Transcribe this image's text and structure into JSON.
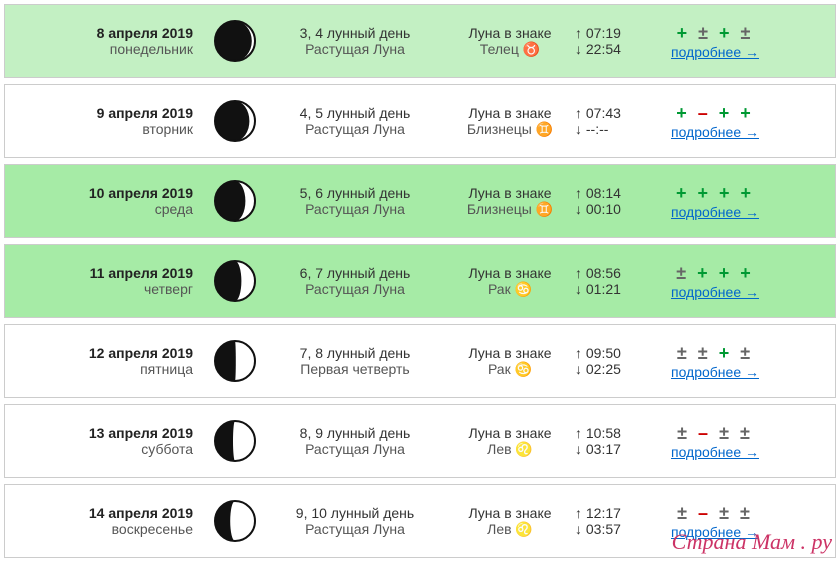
{
  "link_label": "подробнее →",
  "watermark": "Страна Мам . ру",
  "rows": [
    {
      "bg": "bg-palegreen",
      "date": "8 апреля 2019",
      "weekday": "понедельник",
      "moon_light": 0.08,
      "lunar_day": "3, 4 лунный день",
      "phase": "Растущая Луна",
      "sign": "Луна в знаке",
      "zodiac": "Телец ♉",
      "rise": "↑ 07:19",
      "set": "↓ 22:54",
      "score": [
        "+",
        "±",
        "+",
        "±"
      ]
    },
    {
      "bg": "bg-white",
      "date": "9 апреля 2019",
      "weekday": "вторник",
      "moon_light": 0.14,
      "lunar_day": "4, 5 лунный день",
      "phase": "Растущая Луна",
      "sign": "Луна в знаке",
      "zodiac": "Близнецы ♊",
      "rise": "↑ 07:43",
      "set": "↓ --:--",
      "score": [
        "+",
        "–",
        "+",
        "+"
      ]
    },
    {
      "bg": "bg-lightgreen",
      "date": "10 апреля 2019",
      "weekday": "среда",
      "moon_light": 0.24,
      "lunar_day": "5, 6 лунный день",
      "phase": "Растущая Луна",
      "sign": "Луна в знаке",
      "zodiac": "Близнецы ♊",
      "rise": "↑ 08:14",
      "set": "↓ 00:10",
      "score": [
        "+",
        "+",
        "+",
        "+"
      ]
    },
    {
      "bg": "bg-lightgreen",
      "date": "11 апреля 2019",
      "weekday": "четверг",
      "moon_light": 0.34,
      "lunar_day": "6, 7 лунный день",
      "phase": "Растущая Луна",
      "sign": "Луна в знаке",
      "zodiac": "Рак ♋",
      "rise": "↑ 08:56",
      "set": "↓ 01:21",
      "score": [
        "±",
        "+",
        "+",
        "+"
      ]
    },
    {
      "bg": "bg-white",
      "date": "12 апреля 2019",
      "weekday": "пятница",
      "moon_light": 0.48,
      "lunar_day": "7, 8 лунный день",
      "phase": "Первая четверть",
      "sign": "Луна в знаке",
      "zodiac": "Рак ♋",
      "rise": "↑ 09:50",
      "set": "↓ 02:25",
      "score": [
        "±",
        "±",
        "+",
        "±"
      ]
    },
    {
      "bg": "bg-white",
      "date": "13 апреля 2019",
      "weekday": "суббота",
      "moon_light": 0.55,
      "lunar_day": "8, 9 лунный день",
      "phase": "Растущая Луна",
      "sign": "Луна в знаке",
      "zodiac": "Лев ♌",
      "rise": "↑ 10:58",
      "set": "↓ 03:17",
      "score": [
        "±",
        "–",
        "±",
        "±"
      ]
    },
    {
      "bg": "bg-white",
      "date": "14 апреля 2019",
      "weekday": "воскресенье",
      "moon_light": 0.62,
      "lunar_day": "9, 10 лунный день",
      "phase": "Растущая Луна",
      "sign": "Луна в знаке",
      "zodiac": "Лев ♌",
      "rise": "↑ 12:17",
      "set": "↓ 03:57",
      "score": [
        "±",
        "–",
        "±",
        "±"
      ]
    }
  ]
}
